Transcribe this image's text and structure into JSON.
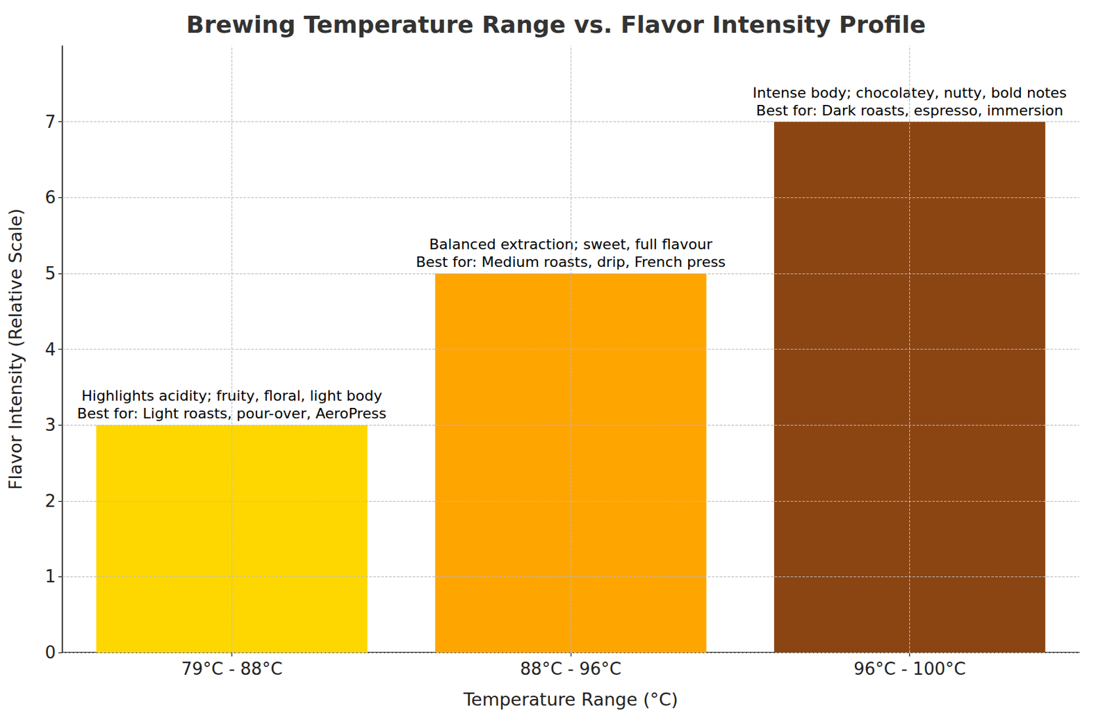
{
  "chart_data": {
    "type": "bar",
    "title": "Brewing Temperature Range vs. Flavor Intensity Profile",
    "x_label": "Temperature Range (°C)",
    "y_label": "Flavor Intensity (Relative Scale)",
    "categories": [
      "79°C - 88°C",
      "88°C - 96°C",
      "96°C - 100°C"
    ],
    "values": [
      3,
      5,
      7
    ],
    "colors": [
      "#ffd700",
      "#ffa500",
      "#8b4513"
    ],
    "annotations": [
      [
        "Highlights acidity; fruity, floral, light body",
        "Best for: Light roasts, pour-over, AeroPress"
      ],
      [
        "Balanced extraction; sweet, full flavour",
        "Best for: Medium roasts, drip, French press"
      ],
      [
        "Intense body; chocolatey, nutty, bold notes",
        "Best for: Dark roasts, espresso, immersion"
      ]
    ],
    "ylim": [
      0,
      8
    ],
    "yticks": [
      0,
      1,
      2,
      3,
      4,
      5,
      6,
      7
    ],
    "grid": true
  }
}
